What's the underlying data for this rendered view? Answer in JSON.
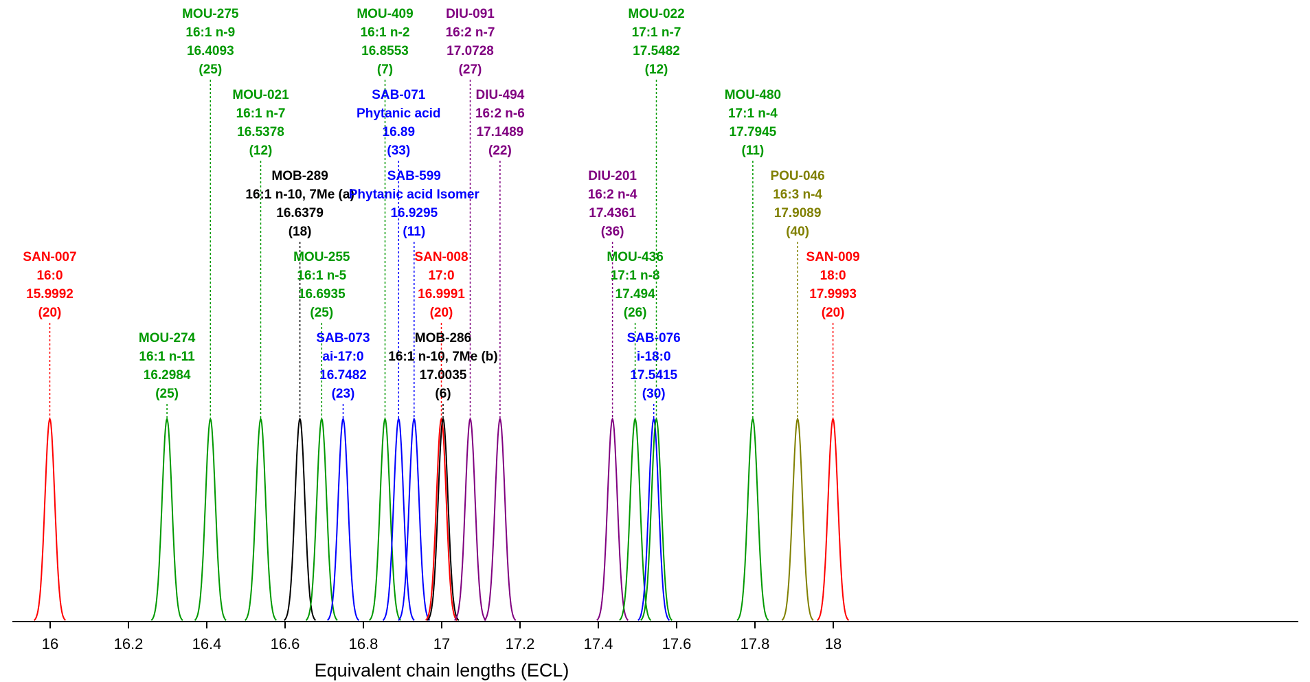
{
  "chart_data": {
    "type": "line",
    "xlabel": "Equivalent chain lengths (ECL)",
    "xlim": [
      15.95,
      18.05
    ],
    "xticks": [
      "16",
      "16.2",
      "16.4",
      "16.6",
      "16.8",
      "17",
      "17.2",
      "17.4",
      "17.6",
      "17.8",
      "18"
    ],
    "xtick_values": [
      16.0,
      16.2,
      16.4,
      16.6,
      16.8,
      17.0,
      17.2,
      17.4,
      17.6,
      17.8,
      18.0
    ],
    "y_axis_visible": false,
    "grid": false,
    "legend": "none",
    "peak_shape": "gaussian",
    "peaks": [
      {
        "code": "SAN-007",
        "name": "16:0",
        "ecl": 15.9992,
        "ecl_text": "15.9992",
        "n": "(20)",
        "color": "#ff0000",
        "tier": 3
      },
      {
        "code": "MOU-274",
        "name": "16:1 n-11",
        "ecl": 16.2984,
        "ecl_text": "16.2984",
        "n": "(25)",
        "color": "#009900",
        "tier": 4
      },
      {
        "code": "MOU-275",
        "name": "16:1 n-9",
        "ecl": 16.4093,
        "ecl_text": "16.4093",
        "n": "(25)",
        "color": "#009900",
        "tier": 0
      },
      {
        "code": "MOU-021",
        "name": "16:1 n-7",
        "ecl": 16.5378,
        "ecl_text": "16.5378",
        "n": "(12)",
        "color": "#009900",
        "tier": 1
      },
      {
        "code": "MOB-289",
        "name": "16:1 n-10, 7Me (a)",
        "ecl": 16.6379,
        "ecl_text": "16.6379",
        "n": "(18)",
        "color": "#000000",
        "tier": 2
      },
      {
        "code": "MOU-255",
        "name": "16:1 n-5",
        "ecl": 16.6935,
        "ecl_text": "16.6935",
        "n": "(25)",
        "color": "#009900",
        "tier": 3
      },
      {
        "code": "SAB-073",
        "name": "ai-17:0",
        "ecl": 16.7482,
        "ecl_text": "16.7482",
        "n": "(23)",
        "color": "#0000ff",
        "tier": 4
      },
      {
        "code": "MOU-409",
        "name": "16:1 n-2",
        "ecl": 16.8553,
        "ecl_text": "16.8553",
        "n": "(7)",
        "color": "#009900",
        "tier": 0
      },
      {
        "code": "SAB-071",
        "name": "Phytanic acid",
        "ecl": 16.89,
        "ecl_text": "16.89",
        "n": "(33)",
        "color": "#0000ff",
        "tier": 1
      },
      {
        "code": "SAB-599",
        "name": "Phytanic acid Isomer",
        "ecl": 16.9295,
        "ecl_text": "16.9295",
        "n": "(11)",
        "color": "#0000ff",
        "tier": 2
      },
      {
        "code": "SAN-008",
        "name": "17:0",
        "ecl": 16.9991,
        "ecl_text": "16.9991",
        "n": "(20)",
        "color": "#ff0000",
        "tier": 3
      },
      {
        "code": "MOB-286",
        "name": "16:1 n-10, 7Me (b)",
        "ecl": 17.0035,
        "ecl_text": "17.0035",
        "n": "(6)",
        "color": "#000000",
        "tier": 4
      },
      {
        "code": "DIU-091",
        "name": "16:2 n-7",
        "ecl": 17.0728,
        "ecl_text": "17.0728",
        "n": "(27)",
        "color": "#800080",
        "tier": 0
      },
      {
        "code": "DIU-494",
        "name": "16:2 n-6",
        "ecl": 17.1489,
        "ecl_text": "17.1489",
        "n": "(22)",
        "color": "#800080",
        "tier": 1
      },
      {
        "code": "DIU-201",
        "name": "16:2 n-4",
        "ecl": 17.4361,
        "ecl_text": "17.4361",
        "n": "(36)",
        "color": "#800080",
        "tier": 2
      },
      {
        "code": "MOU-436",
        "name": "17:1 n-8",
        "ecl": 17.494,
        "ecl_text": "17.494",
        "n": "(26)",
        "color": "#009900",
        "tier": 3
      },
      {
        "code": "SAB-076",
        "name": "i-18:0",
        "ecl": 17.5415,
        "ecl_text": "17.5415",
        "n": "(30)",
        "color": "#0000ff",
        "tier": 4
      },
      {
        "code": "MOU-022",
        "name": "17:1 n-7",
        "ecl": 17.5482,
        "ecl_text": "17.5482",
        "n": "(12)",
        "color": "#009900",
        "tier": 0
      },
      {
        "code": "MOU-480",
        "name": "17:1 n-4",
        "ecl": 17.7945,
        "ecl_text": "17.7945",
        "n": "(11)",
        "color": "#009900",
        "tier": 1
      },
      {
        "code": "POU-046",
        "name": "16:3 n-4",
        "ecl": 17.9089,
        "ecl_text": "17.9089",
        "n": "(40)",
        "color": "#808000",
        "tier": 2
      },
      {
        "code": "SAN-009",
        "name": "18:0",
        "ecl": 17.9993,
        "ecl_text": "17.9993",
        "n": "(20)",
        "color": "#ff0000",
        "tier": 3
      }
    ]
  }
}
